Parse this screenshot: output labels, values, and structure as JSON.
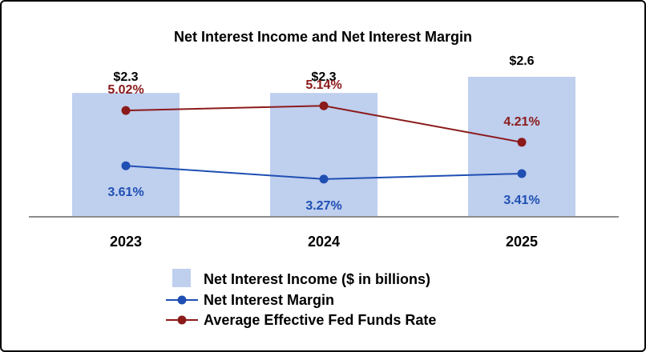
{
  "chart_data": {
    "type": "bar",
    "title": "Net Interest Income and Net Interest Margin",
    "categories": [
      "2023",
      "2024",
      "2025"
    ],
    "ylim_bars": [
      0,
      2.6
    ],
    "series": [
      {
        "name": "Net Interest Income ($ in billions)",
        "kind": "bar",
        "values": [
          2.3,
          2.3,
          2.6
        ],
        "labels": [
          "$2.3",
          "$2.3",
          "$2.6"
        ],
        "color": "#bfcfee"
      },
      {
        "name": "Net Interest Margin",
        "kind": "line",
        "values": [
          3.61,
          3.27,
          3.41
        ],
        "labels": [
          "3.61%",
          "3.27%",
          "3.41%"
        ],
        "color": "#1f4fb3"
      },
      {
        "name": "Average Effective Fed Funds Rate",
        "kind": "line",
        "values": [
          5.02,
          5.14,
          4.21
        ],
        "labels": [
          "5.02%",
          "5.14%",
          "4.21%"
        ],
        "color": "#8b1a1a"
      }
    ],
    "legend": "bottom-center",
    "grid": false
  }
}
